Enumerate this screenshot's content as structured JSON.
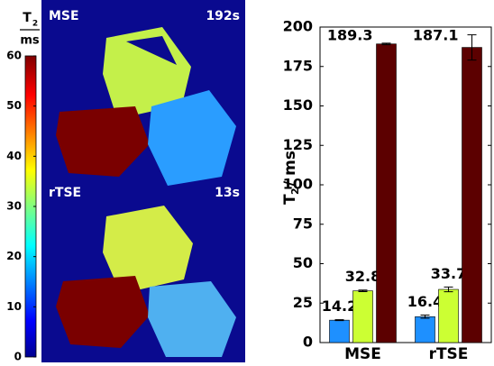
{
  "chart_data": [
    {
      "type": "colorbar",
      "label": "T",
      "label_subscript": "2",
      "label_unit": "ms",
      "ylim": [
        0,
        60
      ],
      "yticks": [
        0,
        10,
        20,
        30,
        40,
        50,
        60
      ]
    },
    {
      "type": "bar",
      "ylabel": "T",
      "ylabel_subscript": "2",
      "ylabel_unit": "/ ms",
      "categories": [
        "MSE",
        "rTSE"
      ],
      "series": [
        {
          "color": "#1e90ff",
          "values": [
            14.2,
            16.4
          ],
          "errors": [
            0.3,
            1.0
          ]
        },
        {
          "color": "#ccff33",
          "values": [
            32.8,
            33.7
          ],
          "errors": [
            0.5,
            1.5
          ]
        },
        {
          "color": "#5c0000",
          "values": [
            189.3,
            187.1
          ],
          "errors": [
            0.5,
            8
          ]
        }
      ],
      "ylim": [
        0,
        200
      ],
      "yticks": [
        0,
        25,
        50,
        75,
        100,
        125,
        150,
        175,
        200
      ],
      "grid": false
    }
  ],
  "images": [
    {
      "label": "MSE",
      "time": "192s"
    },
    {
      "label": "rTSE",
      "time": "13s"
    }
  ]
}
